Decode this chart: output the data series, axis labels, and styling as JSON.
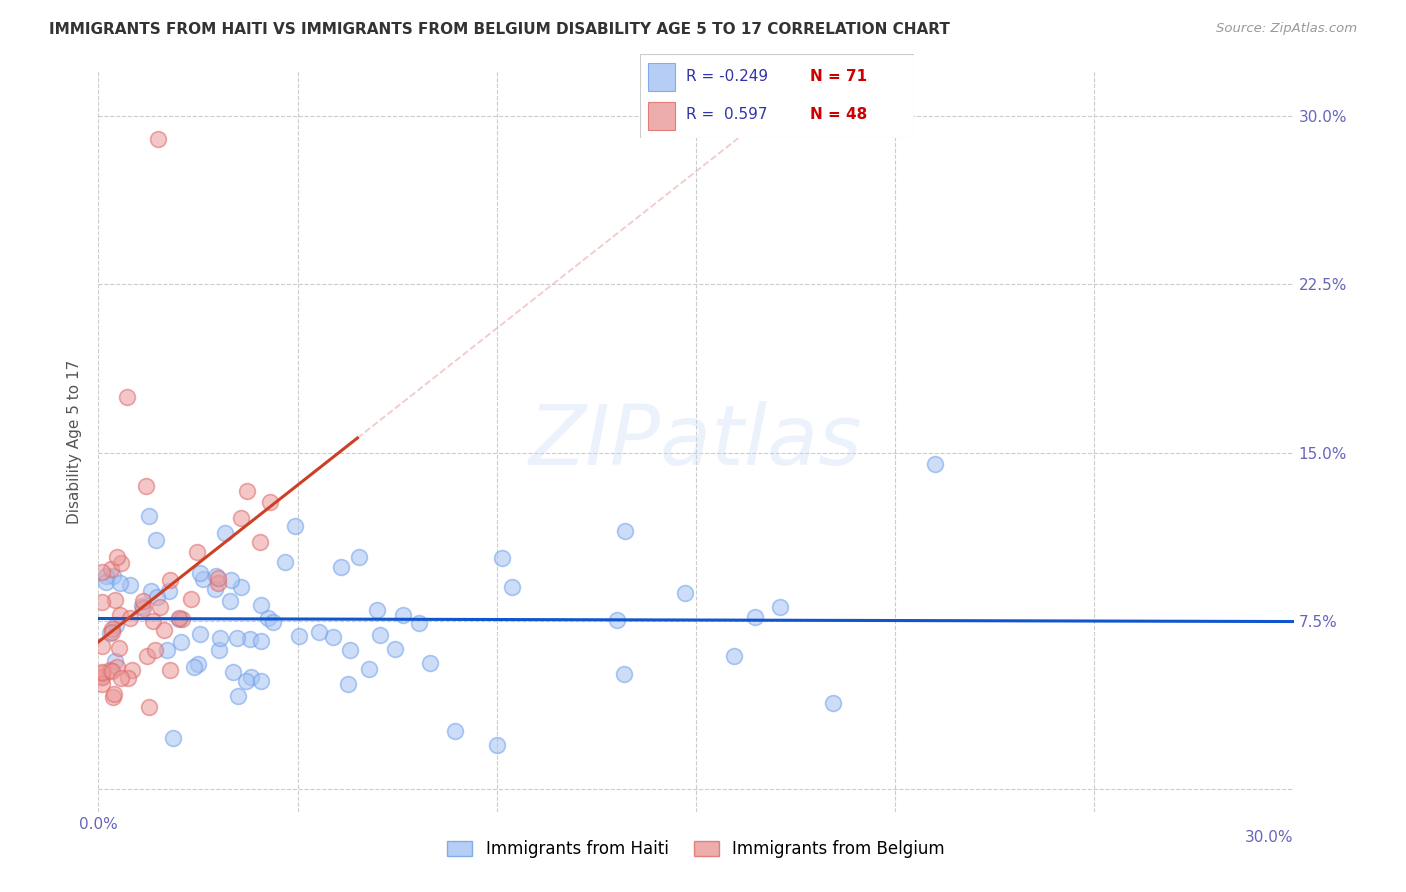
{
  "title": "IMMIGRANTS FROM HAITI VS IMMIGRANTS FROM BELGIUM DISABILITY AGE 5 TO 17 CORRELATION CHART",
  "source": "Source: ZipAtlas.com",
  "ylabel": "Disability Age 5 to 17",
  "xlabel_haiti": "Immigrants from Haiti",
  "xlabel_belgium": "Immigrants from Belgium",
  "xmin": 0.0,
  "xmax": 0.3,
  "ymin": -0.01,
  "ymax": 0.32,
  "haiti_color": "#a4c2f4",
  "haiti_edge_color": "#6d9eeb",
  "belgium_color": "#ea9999",
  "belgium_edge_color": "#e06666",
  "trendline_haiti_color": "#1155cc",
  "trendline_belgium_color": "#cc4125",
  "legend_rect_haiti": "#a4c2f4",
  "legend_rect_belgium": "#ea9999",
  "haiti_R": -0.249,
  "haiti_N": 71,
  "belgium_R": 0.597,
  "belgium_N": 48,
  "watermark_color": "#c9daf8",
  "watermark_text": "ZIPatlas",
  "background_color": "#ffffff",
  "grid_color": "#cccccc",
  "tick_color": "#6666bb",
  "title_color": "#333333",
  "source_color": "#999999",
  "ylabel_color": "#555555"
}
